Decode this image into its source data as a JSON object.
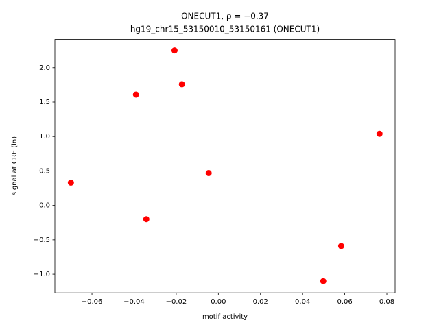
{
  "chart_data": {
    "type": "scatter",
    "title": [
      "ONECUT1, ρ = −0.37",
      "hg19_chr15_53150010_53150161 (ONECUT1)"
    ],
    "x_label": "motif activity",
    "y_label": "signal at CRE (ln)",
    "color": "#ff0000",
    "x": [
      -0.07,
      -0.0391,
      -0.0342,
      -0.0208,
      -0.0173,
      -0.0046,
      0.0583,
      0.0498,
      0.0765
    ],
    "y": [
      0.33,
      1.61,
      -0.2,
      2.25,
      1.76,
      0.47,
      -0.59,
      -1.1,
      1.04
    ],
    "xlim": [
      -0.0776,
      0.0839
    ],
    "ylim": [
      -1.27,
      2.41
    ],
    "xticks": [
      {
        "value": -0.06,
        "label": "−0.06"
      },
      {
        "value": -0.04,
        "label": "−0.04"
      },
      {
        "value": -0.02,
        "label": "−0.02"
      },
      {
        "value": 0,
        "label": "0.00"
      },
      0.02,
      0.04,
      0.06,
      0.08
    ],
    "yticks": [
      {
        "value": -1,
        "label": "−1.0"
      },
      {
        "value": -0.5,
        "label": "−0.5"
      },
      {
        "value": 0,
        "label": "0.0"
      },
      0.5,
      {
        "value": 1,
        "label": "1.0"
      },
      1.5,
      {
        "value": 2,
        "label": "2.0"
      }
    ],
    "grid": false
  }
}
